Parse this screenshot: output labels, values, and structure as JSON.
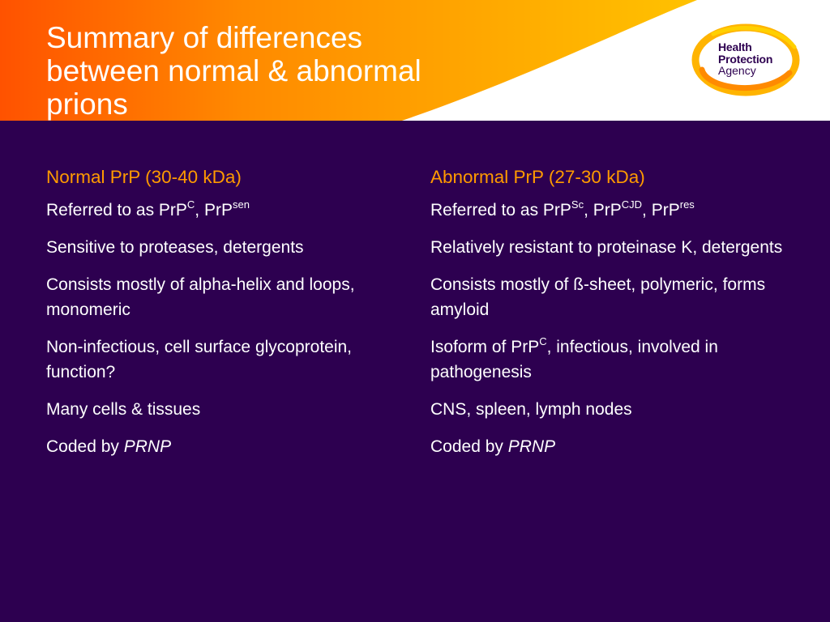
{
  "header": {
    "title_lines": [
      "Summary of differences",
      "between normal & abnormal",
      "prions"
    ],
    "colors": {
      "orange_start": "#ff5a00",
      "orange_end": "#ffb800",
      "background": "#2d0050",
      "heading": "#ff9a00"
    }
  },
  "logo": {
    "icon": "health-protection-agency-logo",
    "line1": "Health",
    "line2": "Protection",
    "line3": "Agency"
  },
  "left": {
    "heading": "Normal PrP (30-40 kDa)",
    "b1": {
      "text": "Referred to as PrP",
      "sup1": "C",
      "mid": ", PrP",
      "sup2": "sen"
    },
    "b2": "Sensitive to proteases, detergents",
    "b3": "Consists mostly of alpha-helix and loops, monomeric",
    "b4": "Non-infectious, cell surface glycoprotein, function?",
    "b5": "Many cells & tissues",
    "b6": {
      "text": "Coded by ",
      "gene": "PRNP"
    }
  },
  "right": {
    "heading": "Abnormal PrP (27-30 kDa)",
    "b1": {
      "text": "Referred to as PrP",
      "sup1": "Sc",
      "mid1": ", PrP",
      "sup2": "CJD",
      "mid2": ", PrP",
      "sup3": "res"
    },
    "b2": "Relatively resistant to proteinase K, detergents",
    "b3": "Consists mostly of ß-sheet, polymeric, forms amyloid",
    "b4": {
      "text": "Isoform of PrP",
      "sup": "C",
      "rest": ", infectious, involved in pathogenesis"
    },
    "b5": "CNS, spleen, lymph nodes",
    "b6": {
      "text": "Coded by ",
      "gene": "PRNP"
    }
  }
}
